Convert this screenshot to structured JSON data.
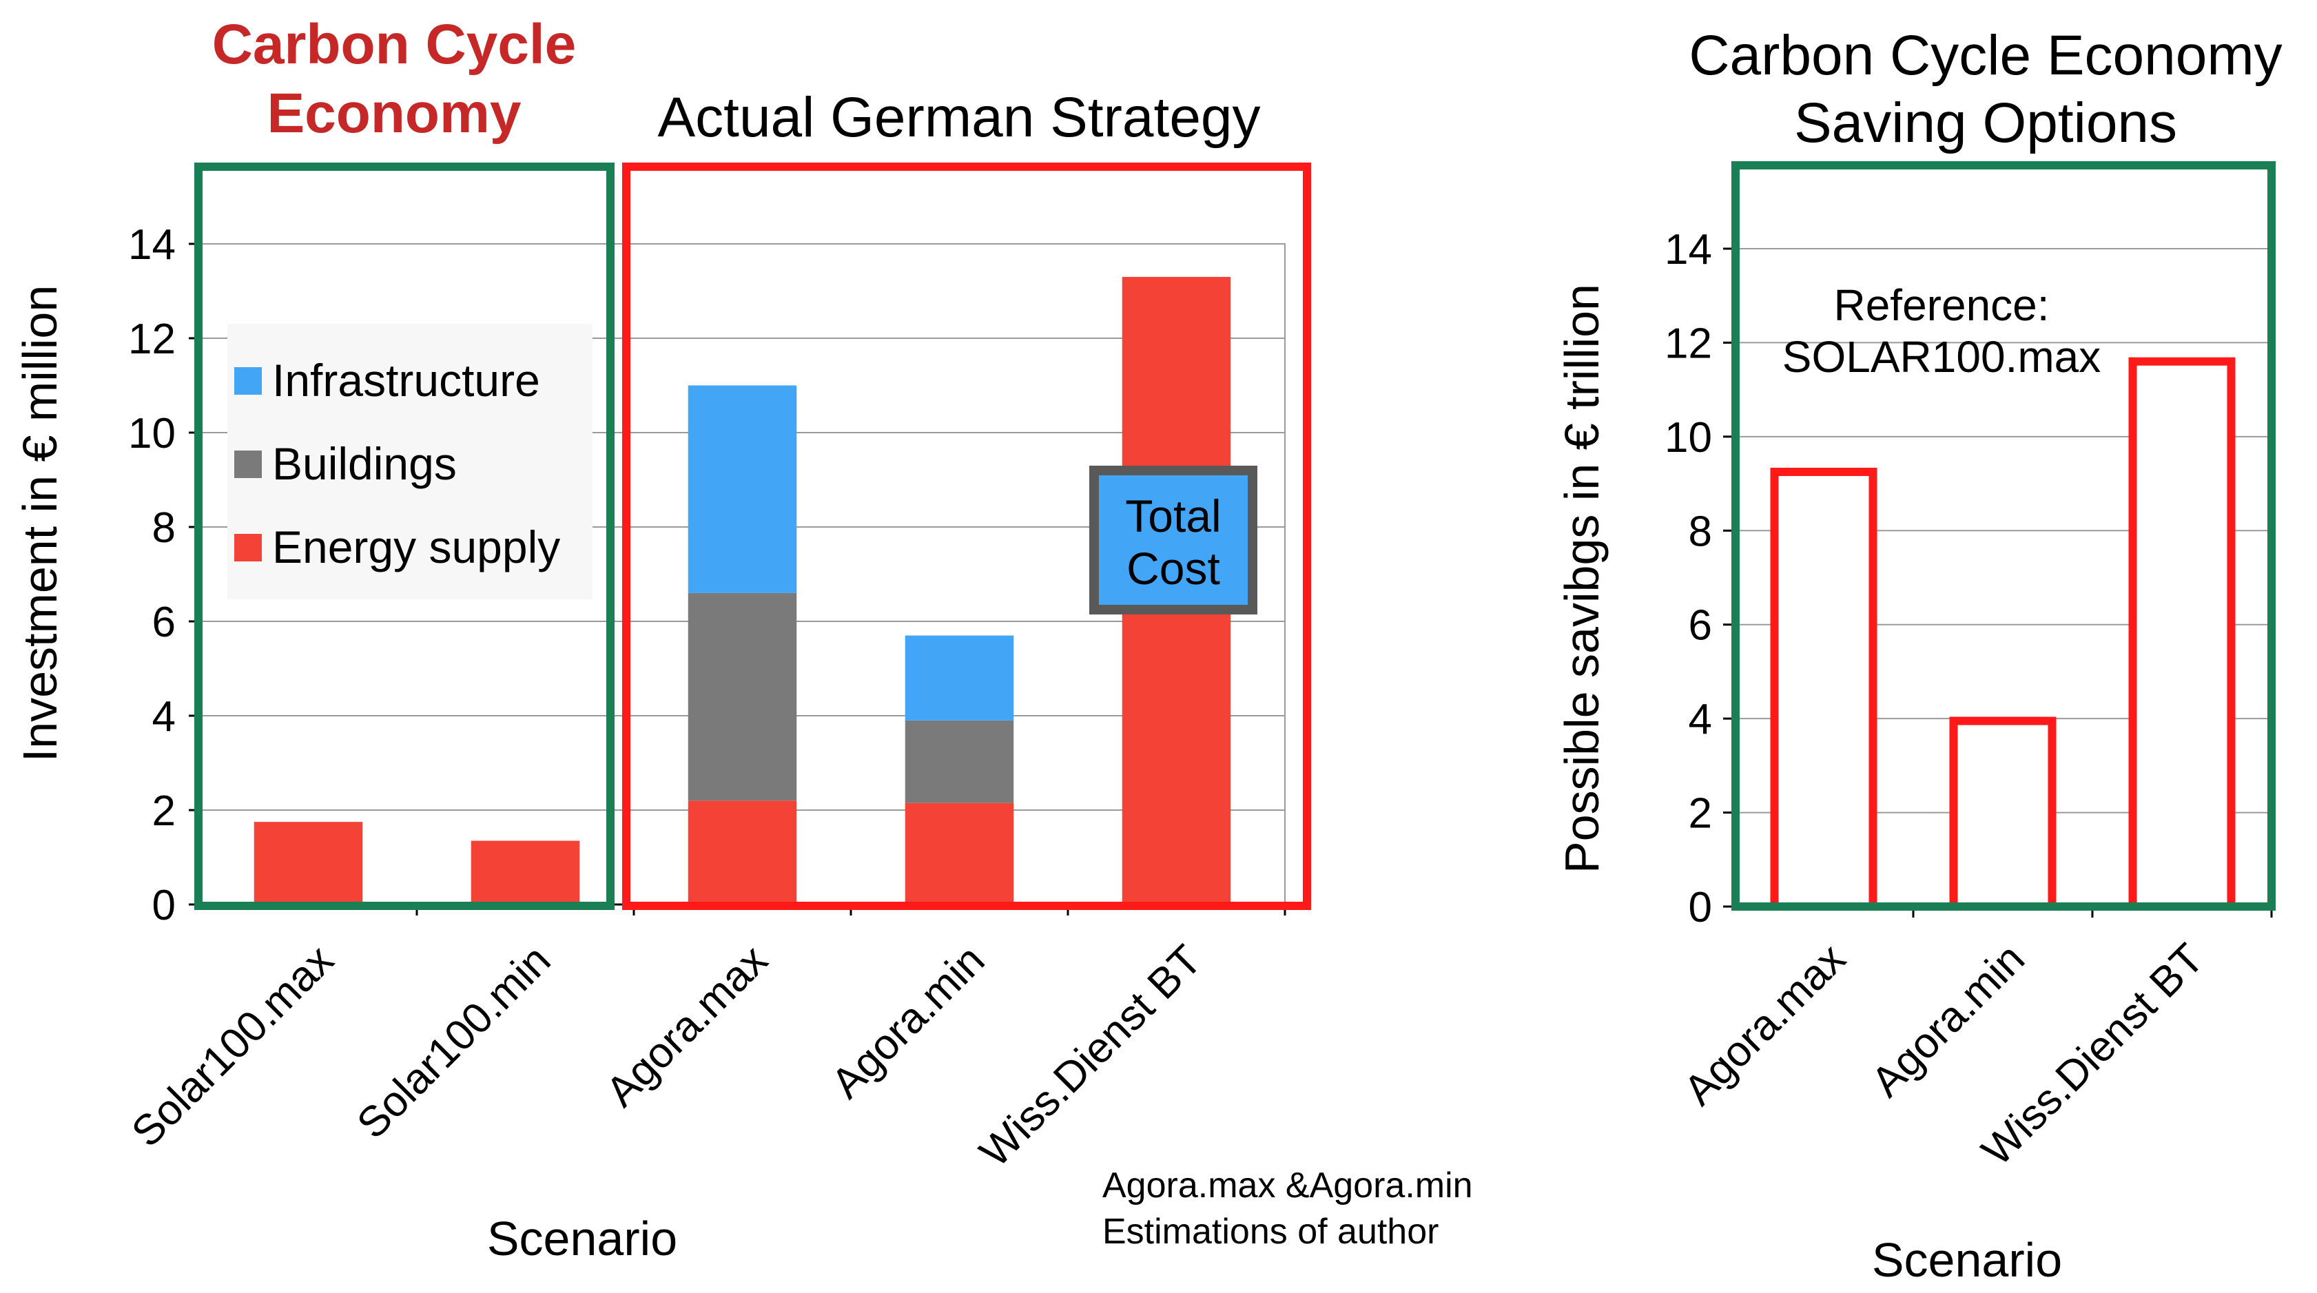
{
  "headings": {
    "cce": "Carbon Cycle Economy",
    "german": "Actual German Strategy",
    "saving": "Carbon Cycle Economy Saving Options"
  },
  "footnote": {
    "line1": "Agora.max &Agora.min",
    "line2": "Estimations of author"
  },
  "callouts": {
    "total_cost": "Total Cost",
    "reference_line1": "Reference:",
    "reference_line2": "SOLAR100.max"
  },
  "colors": {
    "infrastructure": "#42A5F5",
    "buildings": "#7A7A7A",
    "energy_supply": "#F44336",
    "frame_green": "#1B7F55",
    "frame_red": "#FF1A1A",
    "title_red": "#C62828"
  },
  "chart_data": [
    {
      "type": "bar",
      "stacked": true,
      "categories": [
        "Solar100.max",
        "Solar100.min",
        "Agora.max",
        "Agora.min",
        "Wiss.Dienst BT"
      ],
      "series": [
        {
          "name": "Energy supply",
          "values": [
            1.75,
            1.35,
            2.2,
            2.15,
            13.3
          ]
        },
        {
          "name": "Buildings",
          "values": [
            0,
            0,
            4.4,
            1.75,
            0
          ]
        },
        {
          "name": "Infrastructure",
          "values": [
            0,
            0,
            4.4,
            1.8,
            0
          ]
        }
      ],
      "xlabel": "Scenario",
      "ylabel": "Investment in € million",
      "ylim": [
        0,
        14
      ],
      "yticks": [
        0,
        2,
        4,
        6,
        8,
        10,
        12,
        14
      ],
      "grid": true,
      "legend": "left"
    },
    {
      "type": "bar",
      "categories": [
        "Agora.max",
        "Agora.min",
        "Wiss.Dienst BT"
      ],
      "values": [
        9.25,
        3.95,
        11.6
      ],
      "xlabel": "Scenario",
      "ylabel": "Possible savibgs in € trillion",
      "ylim": [
        0,
        14
      ],
      "yticks": [
        0,
        2,
        4,
        6,
        8,
        10,
        12,
        14
      ],
      "grid": true
    }
  ]
}
